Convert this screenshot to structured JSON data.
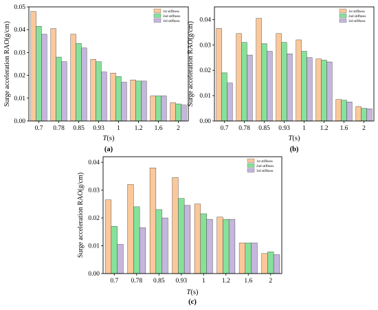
{
  "chart_data": [
    {
      "type": "bar",
      "panel_label": "(a)",
      "xlabel_italic": "T",
      "xlabel_unit": "(s)",
      "ylabel": "Surge acceleration RAO(g/cm)",
      "categories": [
        "0.7",
        "0.78",
        "0.85",
        "0.93",
        "1",
        "1.2",
        "1.6",
        "2"
      ],
      "ylim": [
        0,
        0.05
      ],
      "yticks": [
        "0.00",
        "0.01",
        "0.02",
        "0.03",
        "0.04",
        "0.05"
      ],
      "ytick_values": [
        0,
        0.01,
        0.02,
        0.03,
        0.04,
        0.05
      ],
      "legend_position": "top-right",
      "series": [
        {
          "name": "1st stiffness",
          "values": [
            0.048,
            0.0405,
            0.038,
            0.027,
            0.021,
            0.018,
            0.011,
            0.008
          ]
        },
        {
          "name": "2nd stiffness",
          "values": [
            0.0415,
            0.028,
            0.034,
            0.026,
            0.0195,
            0.0175,
            0.011,
            0.0075
          ]
        },
        {
          "name": "3rd stiffness",
          "values": [
            0.038,
            0.026,
            0.032,
            0.0215,
            0.017,
            0.0175,
            0.011,
            0.007
          ]
        }
      ]
    },
    {
      "type": "bar",
      "panel_label": "(b)",
      "xlabel_italic": "T",
      "xlabel_unit": "(s)",
      "ylabel": "Surge acceleration RAO(g/cm)",
      "categories": [
        "0.7",
        "0.78",
        "0.85",
        "0.93",
        "1",
        "1.2",
        "1.6",
        "2"
      ],
      "ylim": [
        0,
        0.045
      ],
      "yticks": [
        "0.00",
        "0.01",
        "0.02",
        "0.03",
        "0.04"
      ],
      "ytick_values": [
        0,
        0.01,
        0.02,
        0.03,
        0.04
      ],
      "legend_position": "top-right",
      "series": [
        {
          "name": "1st stiffness",
          "values": [
            0.0365,
            0.0345,
            0.0405,
            0.0345,
            0.032,
            0.0245,
            0.0085,
            0.0057
          ]
        },
        {
          "name": "2nd stiffness",
          "values": [
            0.019,
            0.031,
            0.0305,
            0.031,
            0.0275,
            0.024,
            0.0082,
            0.005
          ]
        },
        {
          "name": "3rd stiffness",
          "values": [
            0.015,
            0.026,
            0.0275,
            0.0265,
            0.025,
            0.0233,
            0.0075,
            0.0048
          ]
        }
      ]
    },
    {
      "type": "bar",
      "panel_label": "(c)",
      "xlabel_italic": "T",
      "xlabel_unit": "(s)",
      "ylabel": "Surge acceleration RAO(g/cm)",
      "categories": [
        "0.7",
        "0.78",
        "0.85",
        "0.93",
        "1",
        "1.2",
        "1.6",
        "2"
      ],
      "ylim": [
        0,
        0.042
      ],
      "yticks": [
        "0.00",
        "0.01",
        "0.02",
        "0.03",
        "0.04"
      ],
      "ytick_values": [
        0,
        0.01,
        0.02,
        0.03,
        0.04
      ],
      "legend_position": "top-right",
      "series": [
        {
          "name": "1st stiffness",
          "values": [
            0.0265,
            0.032,
            0.038,
            0.0345,
            0.025,
            0.0203,
            0.011,
            0.0072
          ]
        },
        {
          "name": "2nd stiffness",
          "values": [
            0.017,
            0.024,
            0.023,
            0.027,
            0.0215,
            0.0195,
            0.011,
            0.0078
          ]
        },
        {
          "name": "3rd stiffness",
          "values": [
            0.0105,
            0.0165,
            0.02,
            0.0245,
            0.0195,
            0.0195,
            0.011,
            0.0068
          ]
        }
      ]
    }
  ],
  "colors": {
    "series": [
      "#fbc89a",
      "#86e29a",
      "#c5b6dd"
    ],
    "edge": "#333333",
    "axis": "#000000"
  }
}
